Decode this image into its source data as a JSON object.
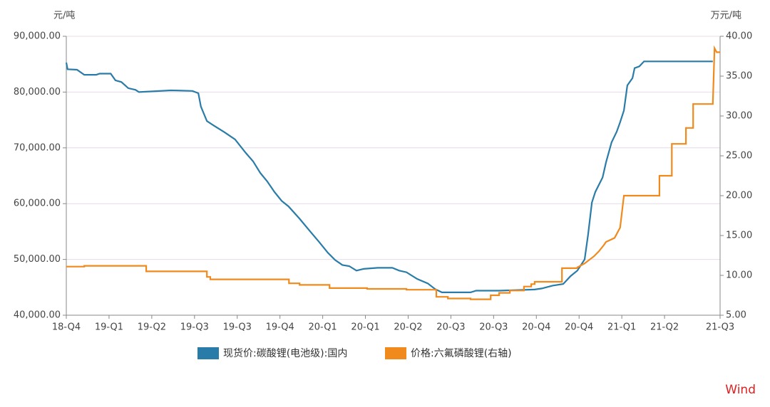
{
  "chart_data": {
    "type": "line",
    "y_unit_label": "元/吨",
    "y2_unit_label": "万元/吨",
    "xlim": [
      0,
      15.3
    ],
    "xticks": [
      {
        "value": 0,
        "label": "18-Q4"
      },
      {
        "value": 1,
        "label": "19-Q1"
      },
      {
        "value": 2,
        "label": "19-Q2"
      },
      {
        "value": 3,
        "label": "19-Q3"
      },
      {
        "value": 4,
        "label": "19-Q3"
      },
      {
        "value": 5,
        "label": "19-Q4"
      },
      {
        "value": 6,
        "label": "20-Q1"
      },
      {
        "value": 7,
        "label": "20-Q1"
      },
      {
        "value": 8,
        "label": "20-Q2"
      },
      {
        "value": 9,
        "label": "20-Q3"
      },
      {
        "value": 10,
        "label": "20-Q3"
      },
      {
        "value": 11,
        "label": "20-Q4"
      },
      {
        "value": 12,
        "label": "20-Q4"
      },
      {
        "value": 13,
        "label": "21-Q1"
      },
      {
        "value": 14,
        "label": "21-Q2"
      },
      {
        "value": 15.3,
        "label": "21-Q3"
      }
    ],
    "ylim": [
      40000,
      90000
    ],
    "yticks": [
      {
        "value": 40000,
        "label": "40,000.00"
      },
      {
        "value": 50000,
        "label": "50,000.00"
      },
      {
        "value": 60000,
        "label": "60,000.00"
      },
      {
        "value": 70000,
        "label": "70,000.00"
      },
      {
        "value": 80000,
        "label": "80,000.00"
      },
      {
        "value": 90000,
        "label": "90,000.00"
      }
    ],
    "y2lim": [
      5,
      40
    ],
    "y2ticks": [
      {
        "value": 5,
        "label": "5.00"
      },
      {
        "value": 10,
        "label": "10.00"
      },
      {
        "value": 15,
        "label": "15.00"
      },
      {
        "value": 20,
        "label": "20.00"
      },
      {
        "value": 25,
        "label": "25.00"
      },
      {
        "value": 30,
        "label": "30.00"
      },
      {
        "value": 35,
        "label": "35.00"
      },
      {
        "value": 40,
        "label": "40.00"
      }
    ],
    "grid": true,
    "series": [
      {
        "name": "现货价:碳酸锂(电池级):国内",
        "color": "#2a7ca8",
        "x": [
          0,
          0.03,
          0.25,
          0.42,
          0.7,
          0.78,
          1.04,
          1.15,
          1.29,
          1.45,
          1.62,
          1.7,
          2.45,
          2.95,
          3.09,
          3.15,
          3.29,
          3.45,
          3.7,
          3.95,
          4.2,
          4.37,
          4.54,
          4.7,
          4.87,
          5.04,
          5.2,
          5.46,
          5.71,
          5.92,
          6.12,
          6.29,
          6.46,
          6.62,
          6.79,
          6.96,
          7.12,
          7.29,
          7.63,
          7.79,
          7.96,
          8.21,
          8.46,
          8.63,
          8.79,
          9.46,
          9.59,
          10.13,
          10.96,
          11.13,
          11.38,
          11.63,
          11.8,
          11.96,
          12.13,
          12.21,
          12.3,
          12.38,
          12.55,
          12.63,
          12.76,
          12.88,
          12.96,
          13.05,
          13.13,
          13.25,
          13.3,
          13.41,
          13.52,
          15.13
        ],
        "values": [
          85280,
          84100,
          84000,
          83100,
          83100,
          83300,
          83300,
          82100,
          81800,
          80700,
          80400,
          80000,
          80300,
          80200,
          79800,
          77400,
          74800,
          74000,
          72800,
          71500,
          69100,
          67600,
          65500,
          64000,
          62100,
          60500,
          59500,
          57300,
          55000,
          53100,
          51200,
          49900,
          49000,
          48800,
          48000,
          48300,
          48400,
          48500,
          48500,
          48000,
          47700,
          46500,
          45700,
          44700,
          44100,
          44100,
          44400,
          44400,
          44600,
          44800,
          45300,
          45600,
          47000,
          48000,
          50000,
          54400,
          60200,
          62100,
          64700,
          67400,
          71000,
          72900,
          74600,
          76700,
          81200,
          82500,
          84300,
          84600,
          85500,
          85500
        ]
      },
      {
        "name": "价格:六氟磷酸锂(右轴)",
        "color": "#f18a1d",
        "axis": "y2",
        "x": [
          0,
          0.42,
          0.42,
          1.87,
          1.87,
          3.29,
          3.29,
          3.37,
          3.37,
          5.21,
          5.21,
          5.46,
          5.46,
          6.16,
          6.16,
          7.04,
          7.04,
          7.96,
          7.96,
          8.66,
          8.66,
          8.93,
          8.93,
          9.46,
          9.46,
          9.93,
          9.93,
          10.13,
          10.13,
          10.38,
          10.38,
          10.71,
          10.71,
          10.88,
          10.88,
          10.96,
          10.96,
          11.6,
          11.6,
          11.96,
          11.96,
          12.13,
          12.35,
          12.46,
          12.58,
          12.63,
          12.83,
          12.96,
          13.05,
          13.88,
          13.88,
          14.17,
          14.17,
          14.5,
          14.5,
          14.67,
          14.67,
          15.13,
          15.17,
          15.22,
          15.3
        ],
        "values": [
          11.1,
          11.1,
          11.2,
          11.2,
          10.5,
          10.5,
          9.8,
          9.8,
          9.5,
          9.5,
          9.0,
          9.0,
          8.8,
          8.8,
          8.4,
          8.4,
          8.3,
          8.3,
          8.2,
          8.2,
          7.3,
          7.3,
          7.1,
          7.1,
          7.0,
          7.0,
          7.5,
          7.5,
          7.8,
          7.8,
          8.1,
          8.1,
          8.6,
          8.6,
          8.9,
          8.9,
          9.2,
          9.2,
          10.9,
          10.9,
          11.0,
          11.5,
          12.4,
          13.0,
          13.8,
          14.2,
          14.7,
          16.0,
          20.0,
          20.0,
          22.5,
          22.5,
          26.5,
          26.5,
          28.5,
          28.5,
          31.5,
          31.5,
          38.5,
          38.0,
          38.0
        ]
      }
    ],
    "watermark": "Wind"
  }
}
